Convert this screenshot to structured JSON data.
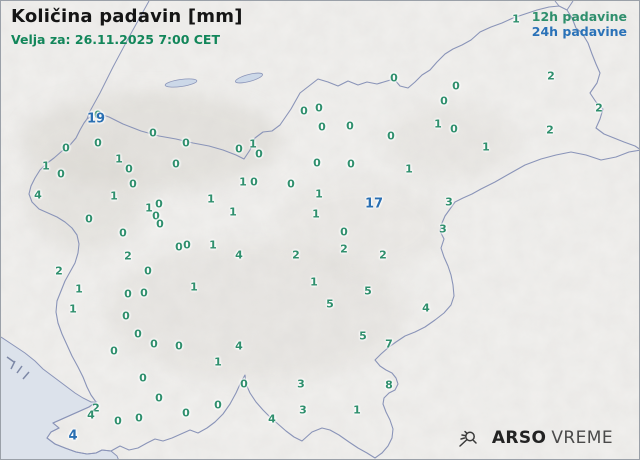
{
  "header": {
    "title": "Količina padavin [mm]",
    "subtitle": "Velja za: 26.11.2025 7:00 CET"
  },
  "legend": {
    "h12": "12h padavine",
    "h24": "24h padavine"
  },
  "logo": {
    "brand_bold": "ARSO",
    "brand_light": "VREME",
    "icon": "sun-rays-icon"
  },
  "colors": {
    "value_12h_green": "#2f8f6d",
    "value_24h_blue": "#2a6fb2",
    "subtitle_green": "#12865a",
    "border_line": "#8a94b8",
    "sea": "#dce2eb",
    "land": "#f1f0ee"
  },
  "stations": {
    "h12": [
      [
        97,
        114,
        0
      ],
      [
        65,
        147,
        0
      ],
      [
        97,
        142,
        0
      ],
      [
        152,
        132,
        0
      ],
      [
        45,
        165,
        1
      ],
      [
        60,
        173,
        0
      ],
      [
        118,
        158,
        1
      ],
      [
        128,
        168,
        0
      ],
      [
        132,
        183,
        0
      ],
      [
        37,
        194,
        4
      ],
      [
        113,
        195,
        1
      ],
      [
        88,
        218,
        0
      ],
      [
        148,
        207,
        1
      ],
      [
        158,
        203,
        0
      ],
      [
        155,
        215,
        0
      ],
      [
        159,
        223,
        0
      ],
      [
        122,
        232,
        0
      ],
      [
        127,
        255,
        2
      ],
      [
        147,
        270,
        0
      ],
      [
        58,
        270,
        2
      ],
      [
        78,
        288,
        1
      ],
      [
        72,
        308,
        1
      ],
      [
        127,
        293,
        0
      ],
      [
        143,
        292,
        0
      ],
      [
        185,
        142,
        0
      ],
      [
        175,
        163,
        0
      ],
      [
        238,
        148,
        0
      ],
      [
        252,
        143,
        1
      ],
      [
        258,
        153,
        0
      ],
      [
        242,
        181,
        1
      ],
      [
        253,
        181,
        0
      ],
      [
        290,
        183,
        0
      ],
      [
        210,
        198,
        1
      ],
      [
        232,
        211,
        1
      ],
      [
        316,
        162,
        0
      ],
      [
        318,
        193,
        1
      ],
      [
        315,
        213,
        1
      ],
      [
        313,
        281,
        1
      ],
      [
        303,
        110,
        0
      ],
      [
        318,
        107,
        0
      ],
      [
        321,
        126,
        0
      ],
      [
        349,
        125,
        0
      ],
      [
        390,
        135,
        0
      ],
      [
        393,
        77,
        0
      ],
      [
        455,
        85,
        0
      ],
      [
        443,
        100,
        0
      ],
      [
        437,
        123,
        1
      ],
      [
        453,
        128,
        0
      ],
      [
        350,
        163,
        0
      ],
      [
        408,
        168,
        1
      ],
      [
        550,
        75,
        2
      ],
      [
        598,
        107,
        2
      ],
      [
        549,
        129,
        2
      ],
      [
        485,
        146,
        1
      ],
      [
        515,
        18,
        1
      ],
      [
        343,
        231,
        0
      ],
      [
        343,
        248,
        2
      ],
      [
        382,
        254,
        2
      ],
      [
        448,
        201,
        3
      ],
      [
        442,
        228,
        3
      ],
      [
        178,
        246,
        0
      ],
      [
        186,
        244,
        0
      ],
      [
        212,
        244,
        1
      ],
      [
        238,
        254,
        4
      ],
      [
        295,
        254,
        2
      ],
      [
        193,
        286,
        1
      ],
      [
        125,
        315,
        0
      ],
      [
        137,
        333,
        0
      ],
      [
        153,
        343,
        0
      ],
      [
        113,
        350,
        0
      ],
      [
        142,
        377,
        0
      ],
      [
        178,
        345,
        0
      ],
      [
        238,
        345,
        4
      ],
      [
        217,
        361,
        1
      ],
      [
        243,
        383,
        0
      ],
      [
        300,
        383,
        3
      ],
      [
        367,
        290,
        5
      ],
      [
        329,
        303,
        5
      ],
      [
        362,
        335,
        5
      ],
      [
        388,
        343,
        7
      ],
      [
        388,
        384,
        8
      ],
      [
        425,
        307,
        4
      ],
      [
        356,
        409,
        1
      ],
      [
        302,
        409,
        3
      ],
      [
        271,
        418,
        4
      ],
      [
        217,
        404,
        0
      ],
      [
        185,
        412,
        0
      ],
      [
        158,
        397,
        0
      ],
      [
        117,
        420,
        0
      ],
      [
        138,
        417,
        0
      ],
      [
        95,
        407,
        2
      ],
      [
        90,
        414,
        4
      ]
    ],
    "h24": [
      [
        95,
        118,
        19
      ],
      [
        373,
        203,
        17
      ],
      [
        72,
        435,
        4
      ]
    ]
  }
}
